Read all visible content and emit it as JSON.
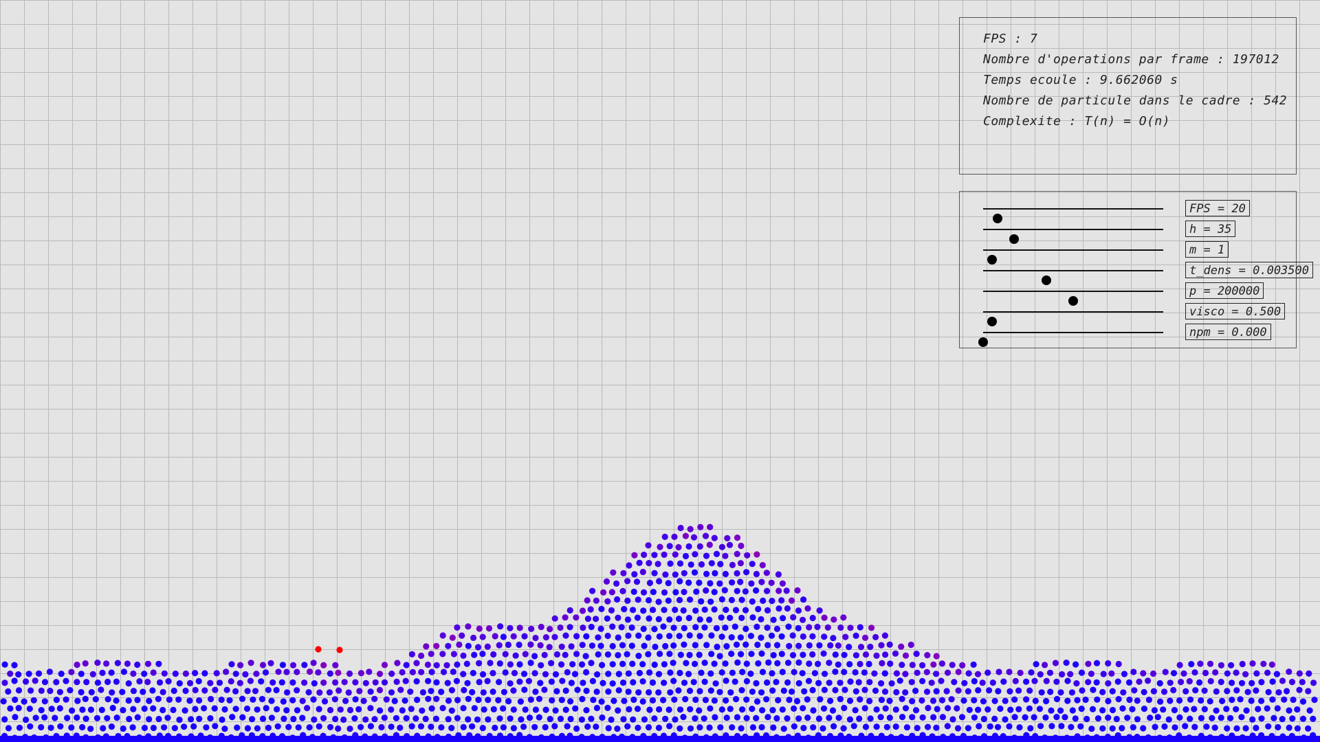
{
  "app": {
    "background_color": "#e4e4e4",
    "grid_color": "#b9b9b9",
    "particle_color_low": "#1a00ff",
    "particle_color_high": "#ff0000"
  },
  "stats": {
    "fps_line": "FPS : 7",
    "operations_line": "Nombre d'operations par frame : 197012",
    "time_line": "Temps ecoule : 9.662060 s",
    "particles_line": "Nombre de particule dans le cadre : 542",
    "complexity_line": "Complexite : T(n) = O(n)"
  },
  "controls": [
    {
      "id": "fps",
      "label": "FPS = 20",
      "level": 0.08
    },
    {
      "id": "h",
      "label": "h = 35",
      "level": 0.17
    },
    {
      "id": "m",
      "label": "m = 1",
      "level": 0.05
    },
    {
      "id": "t_dens",
      "label": "t_dens = 0.003500",
      "level": 0.35
    },
    {
      "id": "p",
      "label": "p = 200000",
      "level": 0.5
    },
    {
      "id": "visco",
      "label": "visco = 0.500",
      "level": 0.05
    },
    {
      "id": "npm",
      "label": "npm = 0.000",
      "level": 0.0
    }
  ]
}
